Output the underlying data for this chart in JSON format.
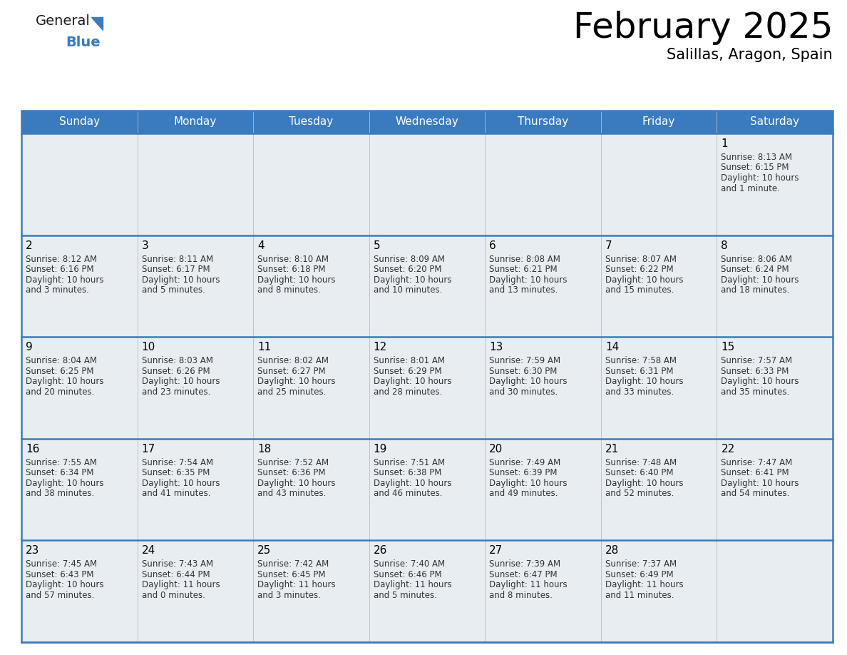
{
  "title": "February 2025",
  "subtitle": "Salillas, Aragon, Spain",
  "header_color": "#3a7bbf",
  "header_text_color": "#ffffff",
  "cell_bg_color": "#e8edf2",
  "cell_bg_white": "#ffffff",
  "border_color": "#3a7bbf",
  "sep_line_color": "#3a7bbf",
  "day_headers": [
    "Sunday",
    "Monday",
    "Tuesday",
    "Wednesday",
    "Thursday",
    "Friday",
    "Saturday"
  ],
  "days_data": [
    {
      "day": 1,
      "col": 6,
      "row": 0,
      "sunrise": "8:13 AM",
      "sunset": "6:15 PM",
      "daylight_line1": "Daylight: 10 hours",
      "daylight_line2": "and 1 minute."
    },
    {
      "day": 2,
      "col": 0,
      "row": 1,
      "sunrise": "8:12 AM",
      "sunset": "6:16 PM",
      "daylight_line1": "Daylight: 10 hours",
      "daylight_line2": "and 3 minutes."
    },
    {
      "day": 3,
      "col": 1,
      "row": 1,
      "sunrise": "8:11 AM",
      "sunset": "6:17 PM",
      "daylight_line1": "Daylight: 10 hours",
      "daylight_line2": "and 5 minutes."
    },
    {
      "day": 4,
      "col": 2,
      "row": 1,
      "sunrise": "8:10 AM",
      "sunset": "6:18 PM",
      "daylight_line1": "Daylight: 10 hours",
      "daylight_line2": "and 8 minutes."
    },
    {
      "day": 5,
      "col": 3,
      "row": 1,
      "sunrise": "8:09 AM",
      "sunset": "6:20 PM",
      "daylight_line1": "Daylight: 10 hours",
      "daylight_line2": "and 10 minutes."
    },
    {
      "day": 6,
      "col": 4,
      "row": 1,
      "sunrise": "8:08 AM",
      "sunset": "6:21 PM",
      "daylight_line1": "Daylight: 10 hours",
      "daylight_line2": "and 13 minutes."
    },
    {
      "day": 7,
      "col": 5,
      "row": 1,
      "sunrise": "8:07 AM",
      "sunset": "6:22 PM",
      "daylight_line1": "Daylight: 10 hours",
      "daylight_line2": "and 15 minutes."
    },
    {
      "day": 8,
      "col": 6,
      "row": 1,
      "sunrise": "8:06 AM",
      "sunset": "6:24 PM",
      "daylight_line1": "Daylight: 10 hours",
      "daylight_line2": "and 18 minutes."
    },
    {
      "day": 9,
      "col": 0,
      "row": 2,
      "sunrise": "8:04 AM",
      "sunset": "6:25 PM",
      "daylight_line1": "Daylight: 10 hours",
      "daylight_line2": "and 20 minutes."
    },
    {
      "day": 10,
      "col": 1,
      "row": 2,
      "sunrise": "8:03 AM",
      "sunset": "6:26 PM",
      "daylight_line1": "Daylight: 10 hours",
      "daylight_line2": "and 23 minutes."
    },
    {
      "day": 11,
      "col": 2,
      "row": 2,
      "sunrise": "8:02 AM",
      "sunset": "6:27 PM",
      "daylight_line1": "Daylight: 10 hours",
      "daylight_line2": "and 25 minutes."
    },
    {
      "day": 12,
      "col": 3,
      "row": 2,
      "sunrise": "8:01 AM",
      "sunset": "6:29 PM",
      "daylight_line1": "Daylight: 10 hours",
      "daylight_line2": "and 28 minutes."
    },
    {
      "day": 13,
      "col": 4,
      "row": 2,
      "sunrise": "7:59 AM",
      "sunset": "6:30 PM",
      "daylight_line1": "Daylight: 10 hours",
      "daylight_line2": "and 30 minutes."
    },
    {
      "day": 14,
      "col": 5,
      "row": 2,
      "sunrise": "7:58 AM",
      "sunset": "6:31 PM",
      "daylight_line1": "Daylight: 10 hours",
      "daylight_line2": "and 33 minutes."
    },
    {
      "day": 15,
      "col": 6,
      "row": 2,
      "sunrise": "7:57 AM",
      "sunset": "6:33 PM",
      "daylight_line1": "Daylight: 10 hours",
      "daylight_line2": "and 35 minutes."
    },
    {
      "day": 16,
      "col": 0,
      "row": 3,
      "sunrise": "7:55 AM",
      "sunset": "6:34 PM",
      "daylight_line1": "Daylight: 10 hours",
      "daylight_line2": "and 38 minutes."
    },
    {
      "day": 17,
      "col": 1,
      "row": 3,
      "sunrise": "7:54 AM",
      "sunset": "6:35 PM",
      "daylight_line1": "Daylight: 10 hours",
      "daylight_line2": "and 41 minutes."
    },
    {
      "day": 18,
      "col": 2,
      "row": 3,
      "sunrise": "7:52 AM",
      "sunset": "6:36 PM",
      "daylight_line1": "Daylight: 10 hours",
      "daylight_line2": "and 43 minutes."
    },
    {
      "day": 19,
      "col": 3,
      "row": 3,
      "sunrise": "7:51 AM",
      "sunset": "6:38 PM",
      "daylight_line1": "Daylight: 10 hours",
      "daylight_line2": "and 46 minutes."
    },
    {
      "day": 20,
      "col": 4,
      "row": 3,
      "sunrise": "7:49 AM",
      "sunset": "6:39 PM",
      "daylight_line1": "Daylight: 10 hours",
      "daylight_line2": "and 49 minutes."
    },
    {
      "day": 21,
      "col": 5,
      "row": 3,
      "sunrise": "7:48 AM",
      "sunset": "6:40 PM",
      "daylight_line1": "Daylight: 10 hours",
      "daylight_line2": "and 52 minutes."
    },
    {
      "day": 22,
      "col": 6,
      "row": 3,
      "sunrise": "7:47 AM",
      "sunset": "6:41 PM",
      "daylight_line1": "Daylight: 10 hours",
      "daylight_line2": "and 54 minutes."
    },
    {
      "day": 23,
      "col": 0,
      "row": 4,
      "sunrise": "7:45 AM",
      "sunset": "6:43 PM",
      "daylight_line1": "Daylight: 10 hours",
      "daylight_line2": "and 57 minutes."
    },
    {
      "day": 24,
      "col": 1,
      "row": 4,
      "sunrise": "7:43 AM",
      "sunset": "6:44 PM",
      "daylight_line1": "Daylight: 11 hours",
      "daylight_line2": "and 0 minutes."
    },
    {
      "day": 25,
      "col": 2,
      "row": 4,
      "sunrise": "7:42 AM",
      "sunset": "6:45 PM",
      "daylight_line1": "Daylight: 11 hours",
      "daylight_line2": "and 3 minutes."
    },
    {
      "day": 26,
      "col": 3,
      "row": 4,
      "sunrise": "7:40 AM",
      "sunset": "6:46 PM",
      "daylight_line1": "Daylight: 11 hours",
      "daylight_line2": "and 5 minutes."
    },
    {
      "day": 27,
      "col": 4,
      "row": 4,
      "sunrise": "7:39 AM",
      "sunset": "6:47 PM",
      "daylight_line1": "Daylight: 11 hours",
      "daylight_line2": "and 8 minutes."
    },
    {
      "day": 28,
      "col": 5,
      "row": 4,
      "sunrise": "7:37 AM",
      "sunset": "6:49 PM",
      "daylight_line1": "Daylight: 11 hours",
      "daylight_line2": "and 11 minutes."
    }
  ],
  "num_rows": 5,
  "num_cols": 7,
  "logo_text_general": "General",
  "logo_text_blue": "Blue",
  "logo_triangle_color": "#3a7bbf",
  "logo_general_color": "#1a1a1a",
  "logo_blue_color": "#3a7bbf",
  "title_fontsize": 36,
  "subtitle_fontsize": 15,
  "day_header_fontsize": 11,
  "day_num_fontsize": 11,
  "cell_text_fontsize": 8.5
}
